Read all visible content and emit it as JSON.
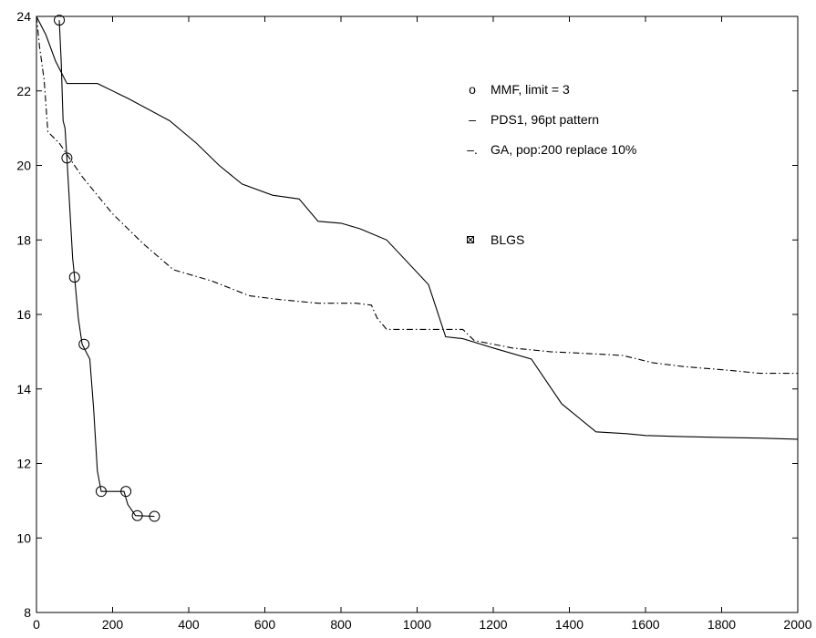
{
  "chart_data": {
    "type": "line",
    "title": "",
    "xlabel": "",
    "ylabel": "",
    "xlim": [
      0,
      2000
    ],
    "ylim": [
      8,
      24
    ],
    "xticks": [
      0,
      200,
      400,
      600,
      800,
      1000,
      1200,
      1400,
      1600,
      1800,
      2000
    ],
    "yticks": [
      8,
      10,
      12,
      14,
      16,
      18,
      20,
      22,
      24
    ],
    "grid": false,
    "legend": {
      "placement": "top-right",
      "entries": [
        {
          "symbol": "o",
          "label": "MMF, limit = 3"
        },
        {
          "symbol": "–",
          "label": "PDS1, 96pt pattern"
        },
        {
          "symbol": "–.",
          "label": "GA, pop:200  replace 10%"
        },
        {
          "symbol": "⊠",
          "label": "BLGS"
        }
      ]
    },
    "series": [
      {
        "name": "MMF, limit = 3",
        "style": "solid-with-circles",
        "x": [
          60,
          65,
          70,
          75,
          80,
          90,
          95,
          100,
          110,
          120,
          130,
          140,
          150,
          160,
          170,
          230,
          240,
          260,
          310
        ],
        "y": [
          23.9,
          22.8,
          21.2,
          21.0,
          20.2,
          18.4,
          17.5,
          17.0,
          15.9,
          15.2,
          15.0,
          14.8,
          13.5,
          11.8,
          11.25,
          11.25,
          10.9,
          10.6,
          10.58
        ],
        "markers_x": [
          60,
          80,
          100,
          125,
          170,
          235,
          265,
          310
        ],
        "markers_y": [
          23.9,
          20.2,
          17.0,
          15.2,
          11.25,
          11.25,
          10.6,
          10.58
        ]
      },
      {
        "name": "PDS1, 96pt pattern",
        "style": "solid",
        "x": [
          0,
          25,
          50,
          80,
          160,
          240,
          350,
          420,
          480,
          540,
          620,
          690,
          740,
          800,
          850,
          920,
          1030,
          1075,
          1120,
          1200,
          1300,
          1380,
          1470,
          1550,
          1600,
          1700,
          1800,
          1900,
          2000
        ],
        "y": [
          24.0,
          23.5,
          22.8,
          22.2,
          22.2,
          21.8,
          21.2,
          20.6,
          20.0,
          19.5,
          19.2,
          19.1,
          18.5,
          18.45,
          18.3,
          18.0,
          16.8,
          15.4,
          15.35,
          15.1,
          14.8,
          13.6,
          12.85,
          12.8,
          12.75,
          12.72,
          12.7,
          12.68,
          12.65
        ]
      },
      {
        "name": "GA, pop:200  replace 10%",
        "style": "dash-dot",
        "x": [
          0,
          8,
          20,
          30,
          60,
          120,
          200,
          280,
          360,
          460,
          560,
          640,
          740,
          840,
          880,
          895,
          920,
          1000,
          1050,
          1120,
          1150,
          1250,
          1350,
          1450,
          1540,
          1620,
          1700,
          1820,
          1900,
          2000
        ],
        "y": [
          24.0,
          23.2,
          22.3,
          20.9,
          20.6,
          19.7,
          18.7,
          17.9,
          17.2,
          16.9,
          16.5,
          16.4,
          16.3,
          16.3,
          16.25,
          15.9,
          15.6,
          15.6,
          15.6,
          15.6,
          15.3,
          15.1,
          15.0,
          14.95,
          14.9,
          14.7,
          14.6,
          14.5,
          14.42,
          14.42
        ]
      }
    ]
  }
}
